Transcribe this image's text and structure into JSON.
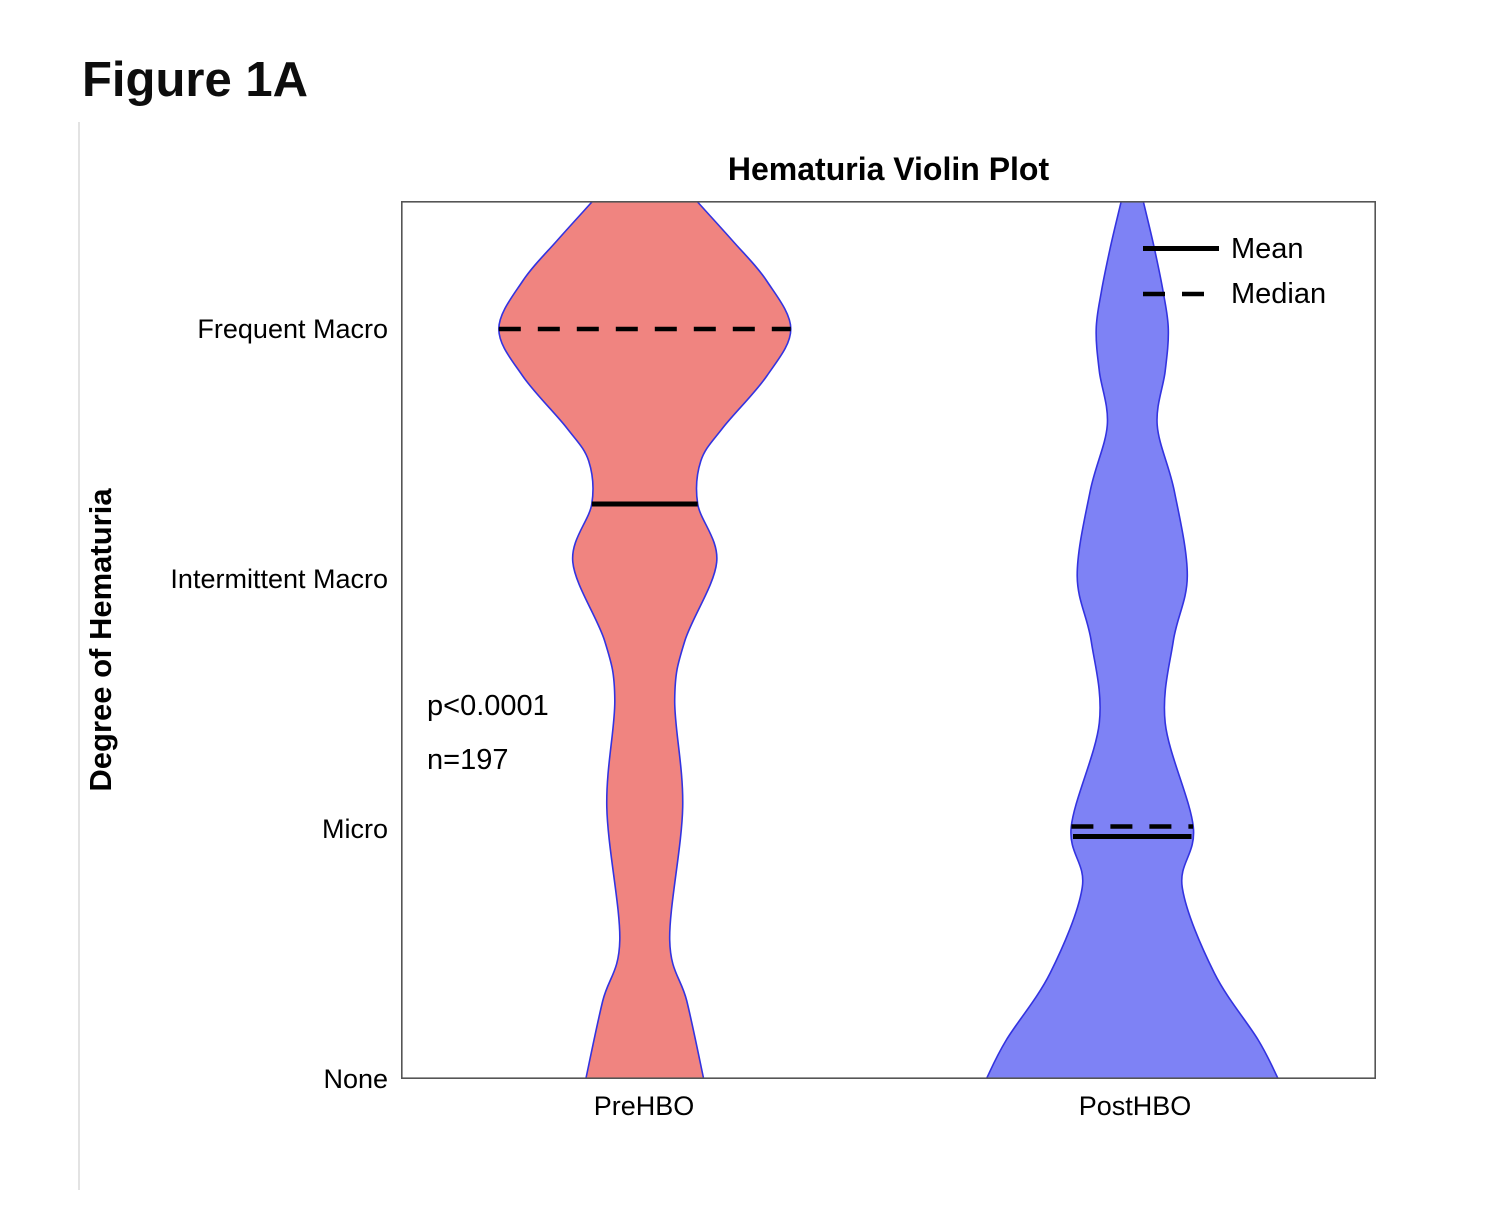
{
  "figure": {
    "label": "Figure 1A"
  },
  "chart_data": {
    "type": "violin",
    "title": "Hematuria Violin Plot",
    "ylabel": "Degree of Hematuria",
    "categories": [
      "PreHBO",
      "PostHBO"
    ],
    "ytick_labels": [
      "None",
      "Micro",
      "Intermittent Macro",
      "Frequent Macro"
    ],
    "ytick_values": [
      1,
      2,
      3,
      4
    ],
    "ylim": [
      1,
      4.512
    ],
    "grid": false,
    "legend_position": "top-right-inside",
    "annotations": {
      "p_value": "p<0.0001",
      "n": "n=197"
    },
    "legend": {
      "mean_label": "Mean",
      "median_label": "Median"
    },
    "series": [
      {
        "name": "PreHBO",
        "fill_color": "#F08480",
        "edge_color": "#3333E0",
        "mean": 3.3,
        "median": 4.0,
        "density_profile": [
          [
            4.512,
            0.356
          ],
          [
            4.352,
            0.603
          ],
          [
            4.192,
            0.836
          ],
          [
            4.0,
            1.0
          ],
          [
            3.812,
            0.836
          ],
          [
            3.604,
            0.534
          ],
          [
            3.472,
            0.384
          ],
          [
            3.3,
            0.363
          ],
          [
            3.068,
            0.493
          ],
          [
            2.752,
            0.274
          ],
          [
            2.516,
            0.205
          ],
          [
            2.088,
            0.26
          ],
          [
            1.556,
            0.171
          ],
          [
            1.312,
            0.288
          ],
          [
            1.0,
            0.404
          ]
        ]
      },
      {
        "name": "PostHBO",
        "fill_color": "#7E82F5",
        "edge_color": "#3333E0",
        "mean": 1.97,
        "median": 2.01,
        "density_profile": [
          [
            4.512,
            0.075
          ],
          [
            4.324,
            0.151
          ],
          [
            4.148,
            0.212
          ],
          [
            4.0,
            0.247
          ],
          [
            3.832,
            0.226
          ],
          [
            3.616,
            0.171
          ],
          [
            3.352,
            0.288
          ],
          [
            3.012,
            0.377
          ],
          [
            2.752,
            0.281
          ],
          [
            2.424,
            0.226
          ],
          [
            2.008,
            0.418
          ],
          [
            1.768,
            0.342
          ],
          [
            1.424,
            0.562
          ],
          [
            1.156,
            0.863
          ],
          [
            1.0,
            1.0
          ]
        ]
      }
    ]
  }
}
